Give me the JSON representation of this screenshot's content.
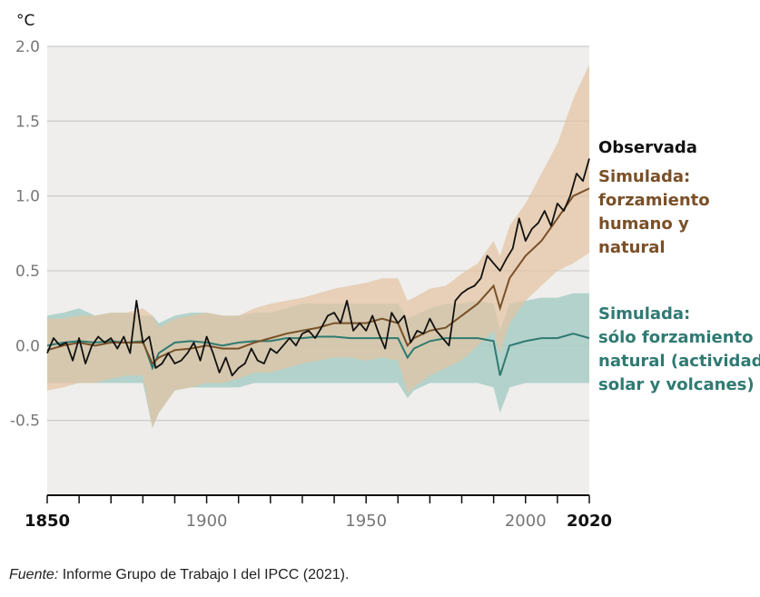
{
  "chart_data": {
    "type": "line",
    "ylabel": "°C",
    "ylim": [
      -1.0,
      2.0
    ],
    "xlim": [
      1850,
      2020
    ],
    "grid": true,
    "y_ticks": [
      {
        "value": 2.0,
        "label": "2.0"
      },
      {
        "value": 1.5,
        "label": "1.5"
      },
      {
        "value": 1.0,
        "label": "1.0"
      },
      {
        "value": 0.5,
        "label": "0.5"
      },
      {
        "value": 0.0,
        "label": "0.0"
      },
      {
        "value": -0.5,
        "label": "-0.5"
      }
    ],
    "x_ticks": [
      {
        "value": 1850,
        "label": "1850",
        "bold": true
      },
      {
        "value": 1900,
        "label": "1900",
        "bold": false
      },
      {
        "value": 1950,
        "label": "1950",
        "bold": false
      },
      {
        "value": 2000,
        "label": "2000",
        "bold": false
      },
      {
        "value": 2020,
        "label": "2020",
        "bold": true
      }
    ],
    "series": [
      {
        "key": "observed",
        "label_lines": [
          "Observada"
        ],
        "color": "#111111",
        "x": [
          1850,
          1852,
          1854,
          1856,
          1858,
          1860,
          1862,
          1864,
          1866,
          1868,
          1870,
          1872,
          1874,
          1876,
          1878,
          1880,
          1882,
          1884,
          1886,
          1888,
          1890,
          1892,
          1894,
          1896,
          1898,
          1900,
          1902,
          1904,
          1906,
          1908,
          1910,
          1912,
          1914,
          1916,
          1918,
          1920,
          1922,
          1924,
          1926,
          1928,
          1930,
          1932,
          1934,
          1936,
          1938,
          1940,
          1942,
          1944,
          1946,
          1948,
          1950,
          1952,
          1954,
          1956,
          1958,
          1960,
          1962,
          1964,
          1966,
          1968,
          1970,
          1972,
          1974,
          1976,
          1978,
          1980,
          1982,
          1984,
          1986,
          1988,
          1990,
          1992,
          1994,
          1996,
          1998,
          2000,
          2002,
          2004,
          2006,
          2008,
          2010,
          2012,
          2014,
          2016,
          2018,
          2020
        ],
        "y": [
          -0.05,
          0.05,
          0.0,
          0.02,
          -0.1,
          0.05,
          -0.12,
          0.0,
          0.06,
          0.02,
          0.05,
          -0.02,
          0.06,
          -0.05,
          0.3,
          0.02,
          0.06,
          -0.15,
          -0.12,
          -0.05,
          -0.12,
          -0.1,
          -0.05,
          0.02,
          -0.1,
          0.06,
          -0.05,
          -0.18,
          -0.08,
          -0.2,
          -0.15,
          -0.12,
          -0.02,
          -0.1,
          -0.12,
          -0.02,
          -0.05,
          0.0,
          0.05,
          0.0,
          0.08,
          0.1,
          0.05,
          0.12,
          0.2,
          0.22,
          0.15,
          0.3,
          0.1,
          0.15,
          0.1,
          0.2,
          0.08,
          -0.02,
          0.22,
          0.15,
          0.2,
          0.02,
          0.1,
          0.08,
          0.18,
          0.1,
          0.05,
          0.0,
          0.3,
          0.35,
          0.38,
          0.4,
          0.45,
          0.6,
          0.55,
          0.5,
          0.58,
          0.65,
          0.85,
          0.7,
          0.78,
          0.82,
          0.9,
          0.8,
          0.95,
          0.9,
          1.0,
          1.15,
          1.1,
          1.25
        ]
      },
      {
        "key": "human_natural",
        "label_lines": [
          "Simulada:",
          "forzamiento",
          "humano y",
          "natural"
        ],
        "color": "#7a5028",
        "band_color": "#e4c3a1",
        "x": [
          1850,
          1855,
          1860,
          1865,
          1870,
          1875,
          1880,
          1883,
          1885,
          1890,
          1895,
          1900,
          1905,
          1910,
          1915,
          1920,
          1925,
          1930,
          1935,
          1940,
          1945,
          1950,
          1955,
          1960,
          1963,
          1965,
          1970,
          1975,
          1980,
          1985,
          1990,
          1992,
          1995,
          2000,
          2005,
          2010,
          2015,
          2020
        ],
        "y": [
          -0.03,
          0.0,
          0.02,
          0.0,
          0.02,
          0.02,
          0.02,
          -0.12,
          -0.08,
          -0.03,
          -0.02,
          0.0,
          -0.02,
          -0.02,
          0.02,
          0.05,
          0.08,
          0.1,
          0.12,
          0.15,
          0.15,
          0.15,
          0.18,
          0.15,
          0.0,
          0.05,
          0.1,
          0.12,
          0.2,
          0.28,
          0.4,
          0.25,
          0.45,
          0.6,
          0.7,
          0.85,
          1.0,
          1.05
        ],
        "lower": [
          -0.3,
          -0.28,
          -0.25,
          -0.25,
          -0.22,
          -0.2,
          -0.2,
          -0.55,
          -0.45,
          -0.3,
          -0.28,
          -0.25,
          -0.25,
          -0.22,
          -0.18,
          -0.18,
          -0.15,
          -0.12,
          -0.1,
          -0.08,
          -0.08,
          -0.1,
          -0.08,
          -0.1,
          -0.32,
          -0.28,
          -0.2,
          -0.15,
          -0.1,
          0.0,
          0.1,
          -0.05,
          0.15,
          0.3,
          0.4,
          0.5,
          0.55,
          0.62
        ],
        "upper": [
          0.18,
          0.18,
          0.2,
          0.2,
          0.22,
          0.22,
          0.25,
          0.2,
          0.12,
          0.18,
          0.2,
          0.22,
          0.2,
          0.2,
          0.25,
          0.28,
          0.3,
          0.32,
          0.35,
          0.38,
          0.4,
          0.42,
          0.45,
          0.45,
          0.3,
          0.32,
          0.38,
          0.4,
          0.48,
          0.55,
          0.7,
          0.6,
          0.8,
          0.95,
          1.15,
          1.35,
          1.65,
          1.88
        ]
      },
      {
        "key": "natural",
        "label_lines": [
          "Simulada:",
          "sólo forzamiento",
          "natural (actividad",
          "solar y volcanes)"
        ],
        "color": "#2f7a72",
        "band_color": "#a8ccc6",
        "x": [
          1850,
          1855,
          1860,
          1865,
          1870,
          1875,
          1880,
          1883,
          1885,
          1890,
          1895,
          1900,
          1905,
          1910,
          1915,
          1920,
          1925,
          1930,
          1935,
          1940,
          1945,
          1950,
          1955,
          1960,
          1963,
          1965,
          1970,
          1975,
          1980,
          1985,
          1990,
          1992,
          1995,
          2000,
          2005,
          2010,
          2015,
          2020
        ],
        "y": [
          0.0,
          0.02,
          0.03,
          0.02,
          0.03,
          0.02,
          0.03,
          -0.15,
          -0.05,
          0.02,
          0.03,
          0.02,
          0.0,
          0.02,
          0.03,
          0.03,
          0.05,
          0.05,
          0.06,
          0.06,
          0.05,
          0.05,
          0.05,
          0.05,
          -0.08,
          -0.02,
          0.03,
          0.05,
          0.05,
          0.05,
          0.03,
          -0.2,
          0.0,
          0.03,
          0.05,
          0.05,
          0.08,
          0.05
        ],
        "lower": [
          -0.25,
          -0.25,
          -0.25,
          -0.25,
          -0.25,
          -0.25,
          -0.25,
          -0.55,
          -0.45,
          -0.3,
          -0.28,
          -0.28,
          -0.28,
          -0.28,
          -0.25,
          -0.25,
          -0.25,
          -0.25,
          -0.25,
          -0.25,
          -0.25,
          -0.25,
          -0.25,
          -0.25,
          -0.35,
          -0.3,
          -0.25,
          -0.25,
          -0.25,
          -0.25,
          -0.28,
          -0.45,
          -0.28,
          -0.25,
          -0.25,
          -0.25,
          -0.25,
          -0.25
        ],
        "upper": [
          0.2,
          0.22,
          0.25,
          0.2,
          0.22,
          0.22,
          0.2,
          0.2,
          0.15,
          0.2,
          0.22,
          0.22,
          0.2,
          0.2,
          0.22,
          0.22,
          0.25,
          0.28,
          0.28,
          0.28,
          0.28,
          0.28,
          0.28,
          0.28,
          0.18,
          0.2,
          0.25,
          0.28,
          0.28,
          0.3,
          0.28,
          0.1,
          0.28,
          0.3,
          0.32,
          0.32,
          0.35,
          0.35
        ]
      }
    ],
    "colors": {
      "plot_background": "#efeeec",
      "gridline": "#cfcdcb",
      "axis": "#111111",
      "tick_label": "#777777",
      "bold_tick_label": "#111111"
    }
  },
  "source": {
    "prefix": "Fuente:",
    "text": "Informe Grupo de Trabajo I del IPCC (2021)."
  }
}
